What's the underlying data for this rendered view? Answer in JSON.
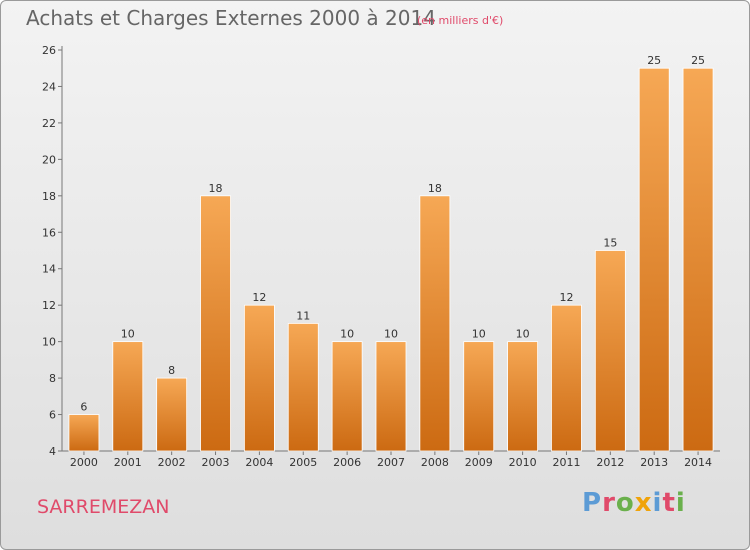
{
  "header": {
    "title": "Achats et Charges Externes 2000 à 2014",
    "subtitle": "(en milliers d'€)"
  },
  "footer": {
    "place": "SARREMEZAN",
    "brand": "Proxiti"
  },
  "colors": {
    "bar_top": "#f6a855",
    "bar_bottom": "#cc6a12",
    "accent": "#e04a6a",
    "brand_letters": [
      "#5c9bd5",
      "#e04a6a",
      "#6ab04c",
      "#f0a30a",
      "#5c9bd5",
      "#e04a6a",
      "#6ab04c"
    ]
  },
  "chart_data": {
    "type": "bar",
    "title": "Achats et Charges Externes 2000 à 2014",
    "subtitle": "(en milliers d'€)",
    "categories": [
      "2000",
      "2001",
      "2002",
      "2003",
      "2004",
      "2005",
      "2006",
      "2007",
      "2008",
      "2009",
      "2010",
      "2011",
      "2012",
      "2013",
      "2014"
    ],
    "values": [
      6,
      10,
      8,
      18,
      12,
      11,
      10,
      10,
      18,
      10,
      10,
      12,
      15,
      25,
      25
    ],
    "ylim": [
      4,
      26
    ],
    "yticks": [
      4,
      6,
      8,
      10,
      12,
      14,
      16,
      18,
      20,
      22,
      24,
      26
    ],
    "grid": false,
    "data_labels": true
  }
}
